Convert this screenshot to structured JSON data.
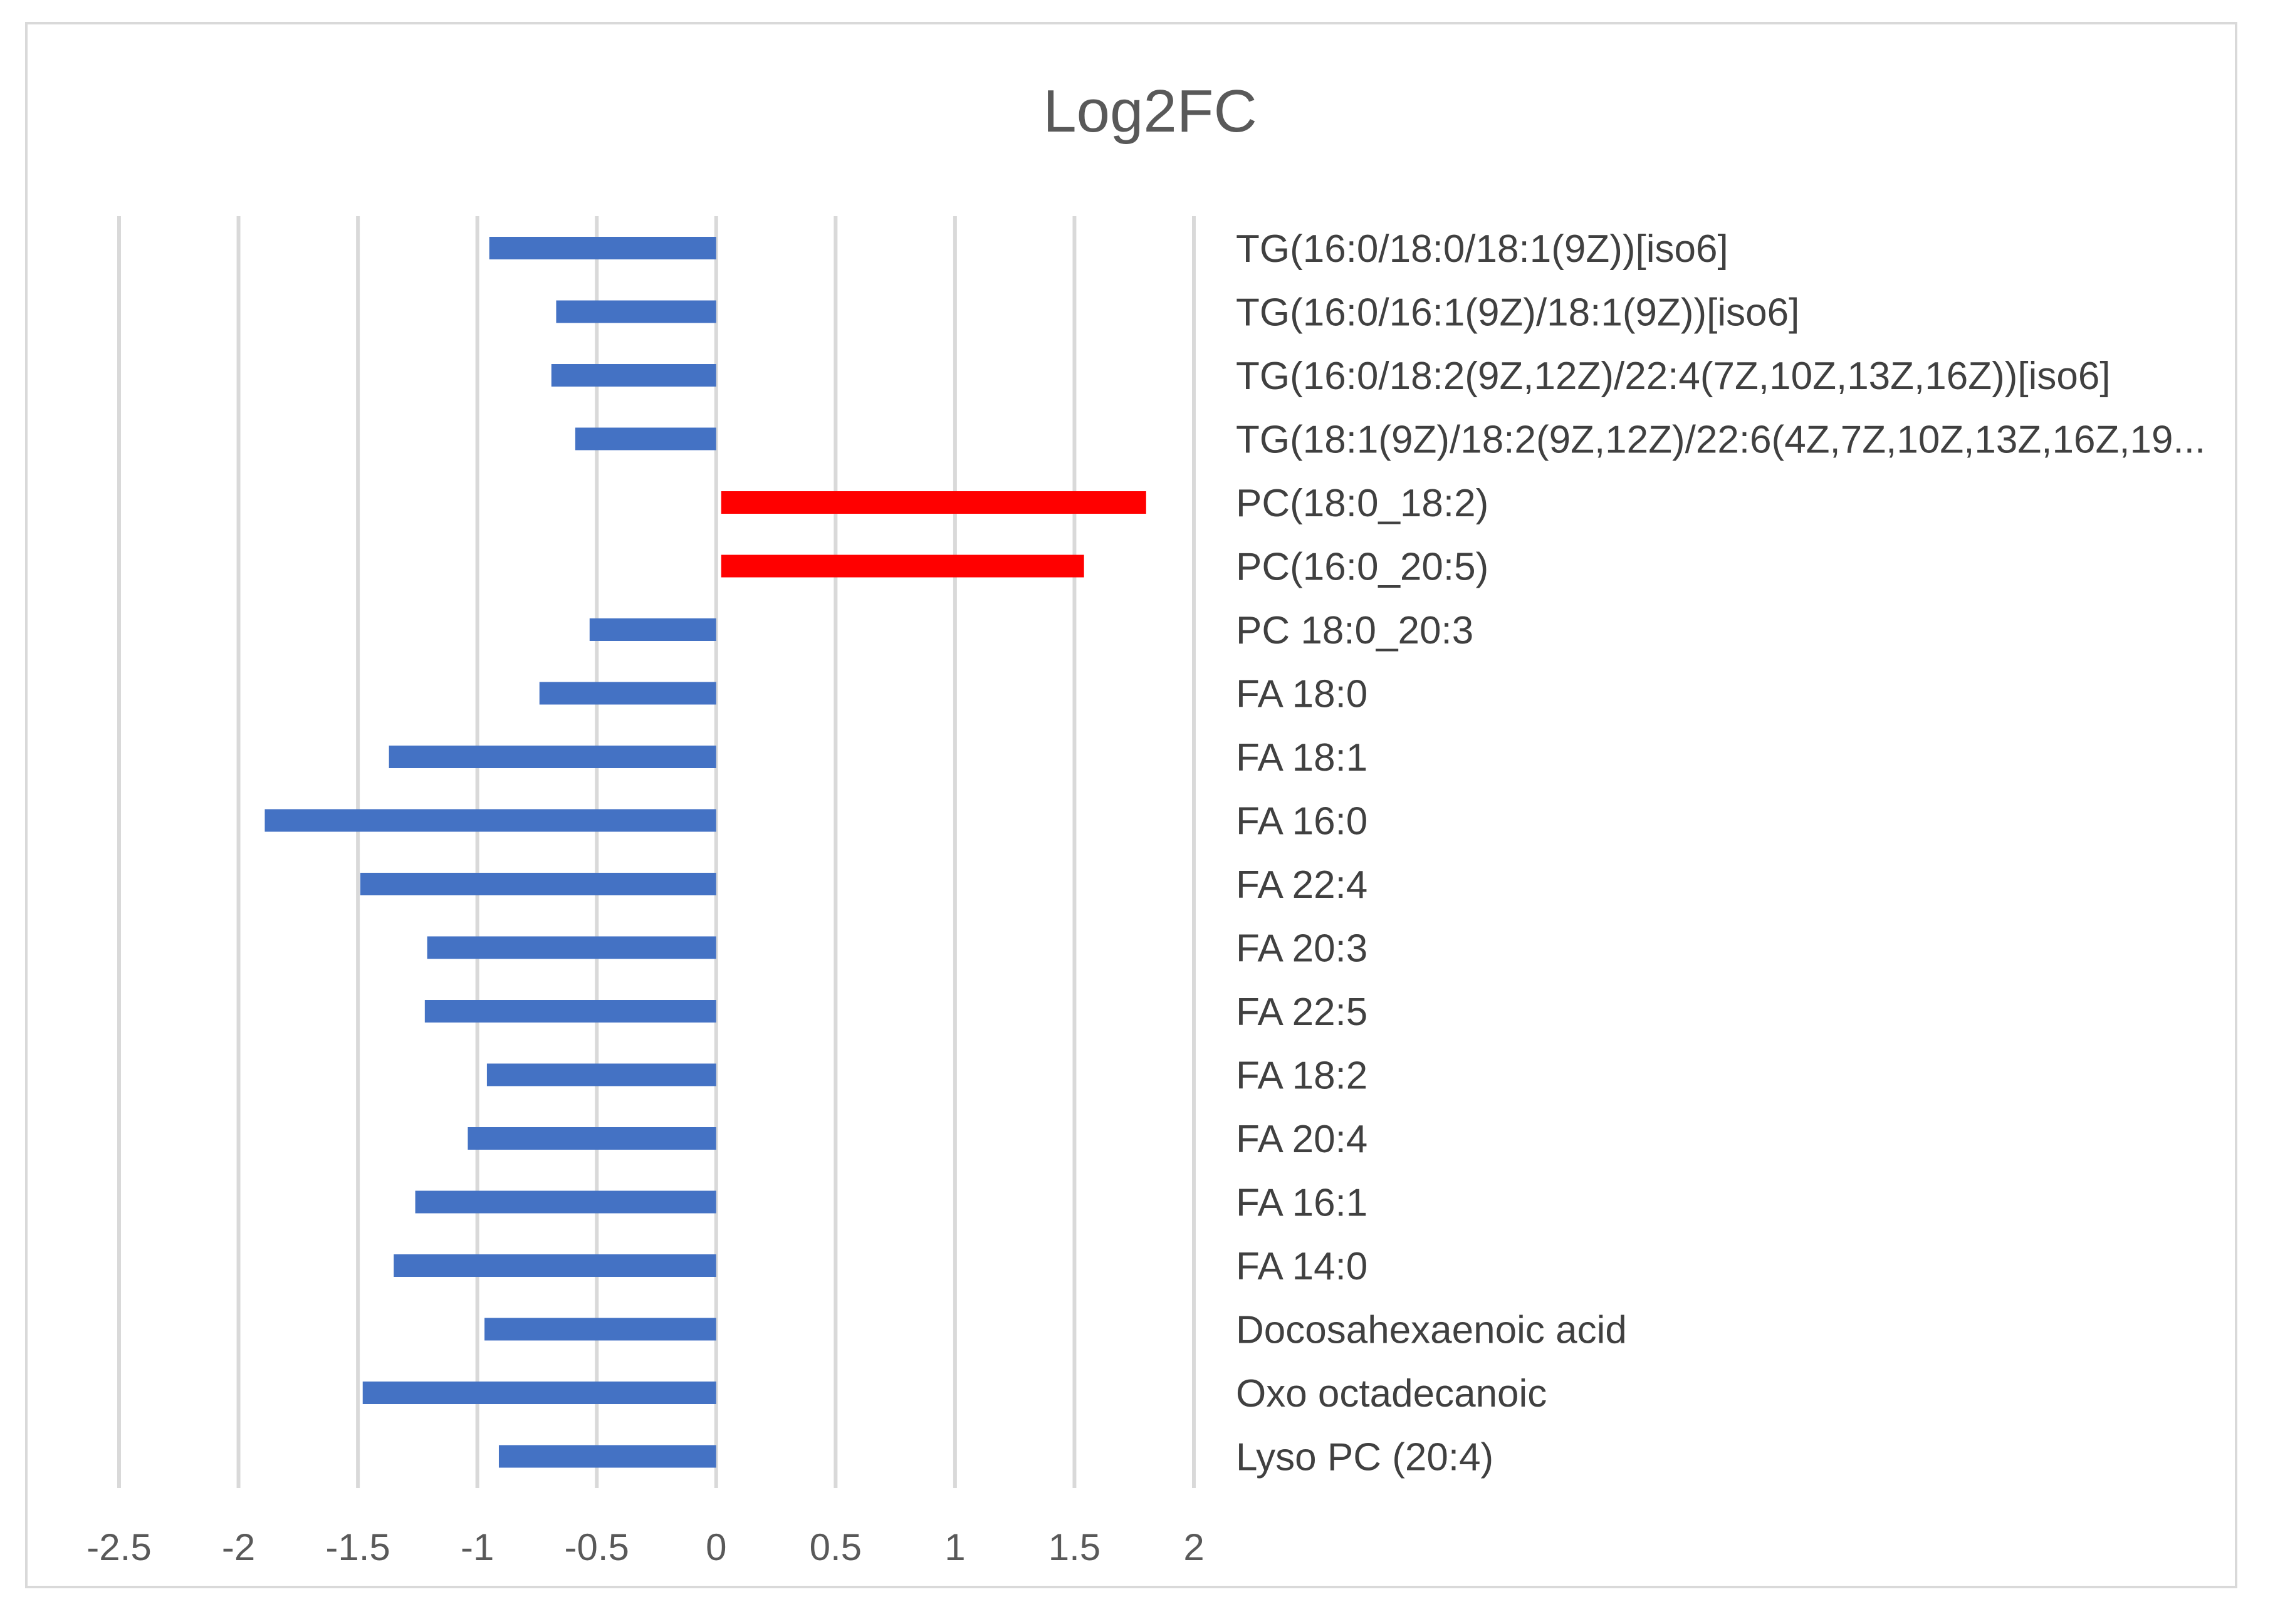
{
  "chart_data": {
    "type": "bar",
    "orientation": "horizontal",
    "title": "Log2FC",
    "xlabel": "",
    "ylabel": "",
    "xlim": [
      -2.5,
      2
    ],
    "x_ticks": [
      "-2.5",
      "-2",
      "-1.5",
      "-1",
      "-0.5",
      "0",
      "0.5",
      "1",
      "1.5",
      "2"
    ],
    "x_tick_values": [
      -2.5,
      -2,
      -1.5,
      -1,
      -0.5,
      0,
      0.5,
      1,
      1.5,
      2
    ],
    "grid": true,
    "categories": [
      "TG(16:0/18:0/18:1(9Z))[iso6]",
      "TG(16:0/16:1(9Z)/18:1(9Z))[iso6]",
      "TG(16:0/18:2(9Z,12Z)/22:4(7Z,10Z,13Z,16Z))[iso6]",
      "TG(18:1(9Z)/18:2(9Z,12Z)/22:6(4Z,7Z,10Z,13Z,16Z,19...",
      "PC(18:0_18:2)",
      "PC(16:0_20:5)",
      "PC 18:0_20:3",
      "FA 18:0",
      "FA 18:1",
      "FA 16:0",
      "FA 22:4",
      "FA 20:3",
      "FA 22:5",
      "FA 18:2",
      "FA 20:4",
      "FA 16:1",
      "FA 14:0",
      "Docosahexaenoic acid",
      "Oxo octadecanoic",
      "Lyso PC (20:4)"
    ],
    "values": [
      -0.95,
      -0.67,
      -0.69,
      -0.59,
      1.8,
      1.54,
      -0.53,
      -0.74,
      -1.37,
      -1.89,
      -1.49,
      -1.21,
      -1.22,
      -0.96,
      -1.04,
      -1.26,
      -1.35,
      -0.97,
      -1.48,
      -0.91
    ],
    "colors": {
      "negative": "#4472c4",
      "positive": "#ff0000",
      "grid": "#d9d9d9"
    }
  }
}
